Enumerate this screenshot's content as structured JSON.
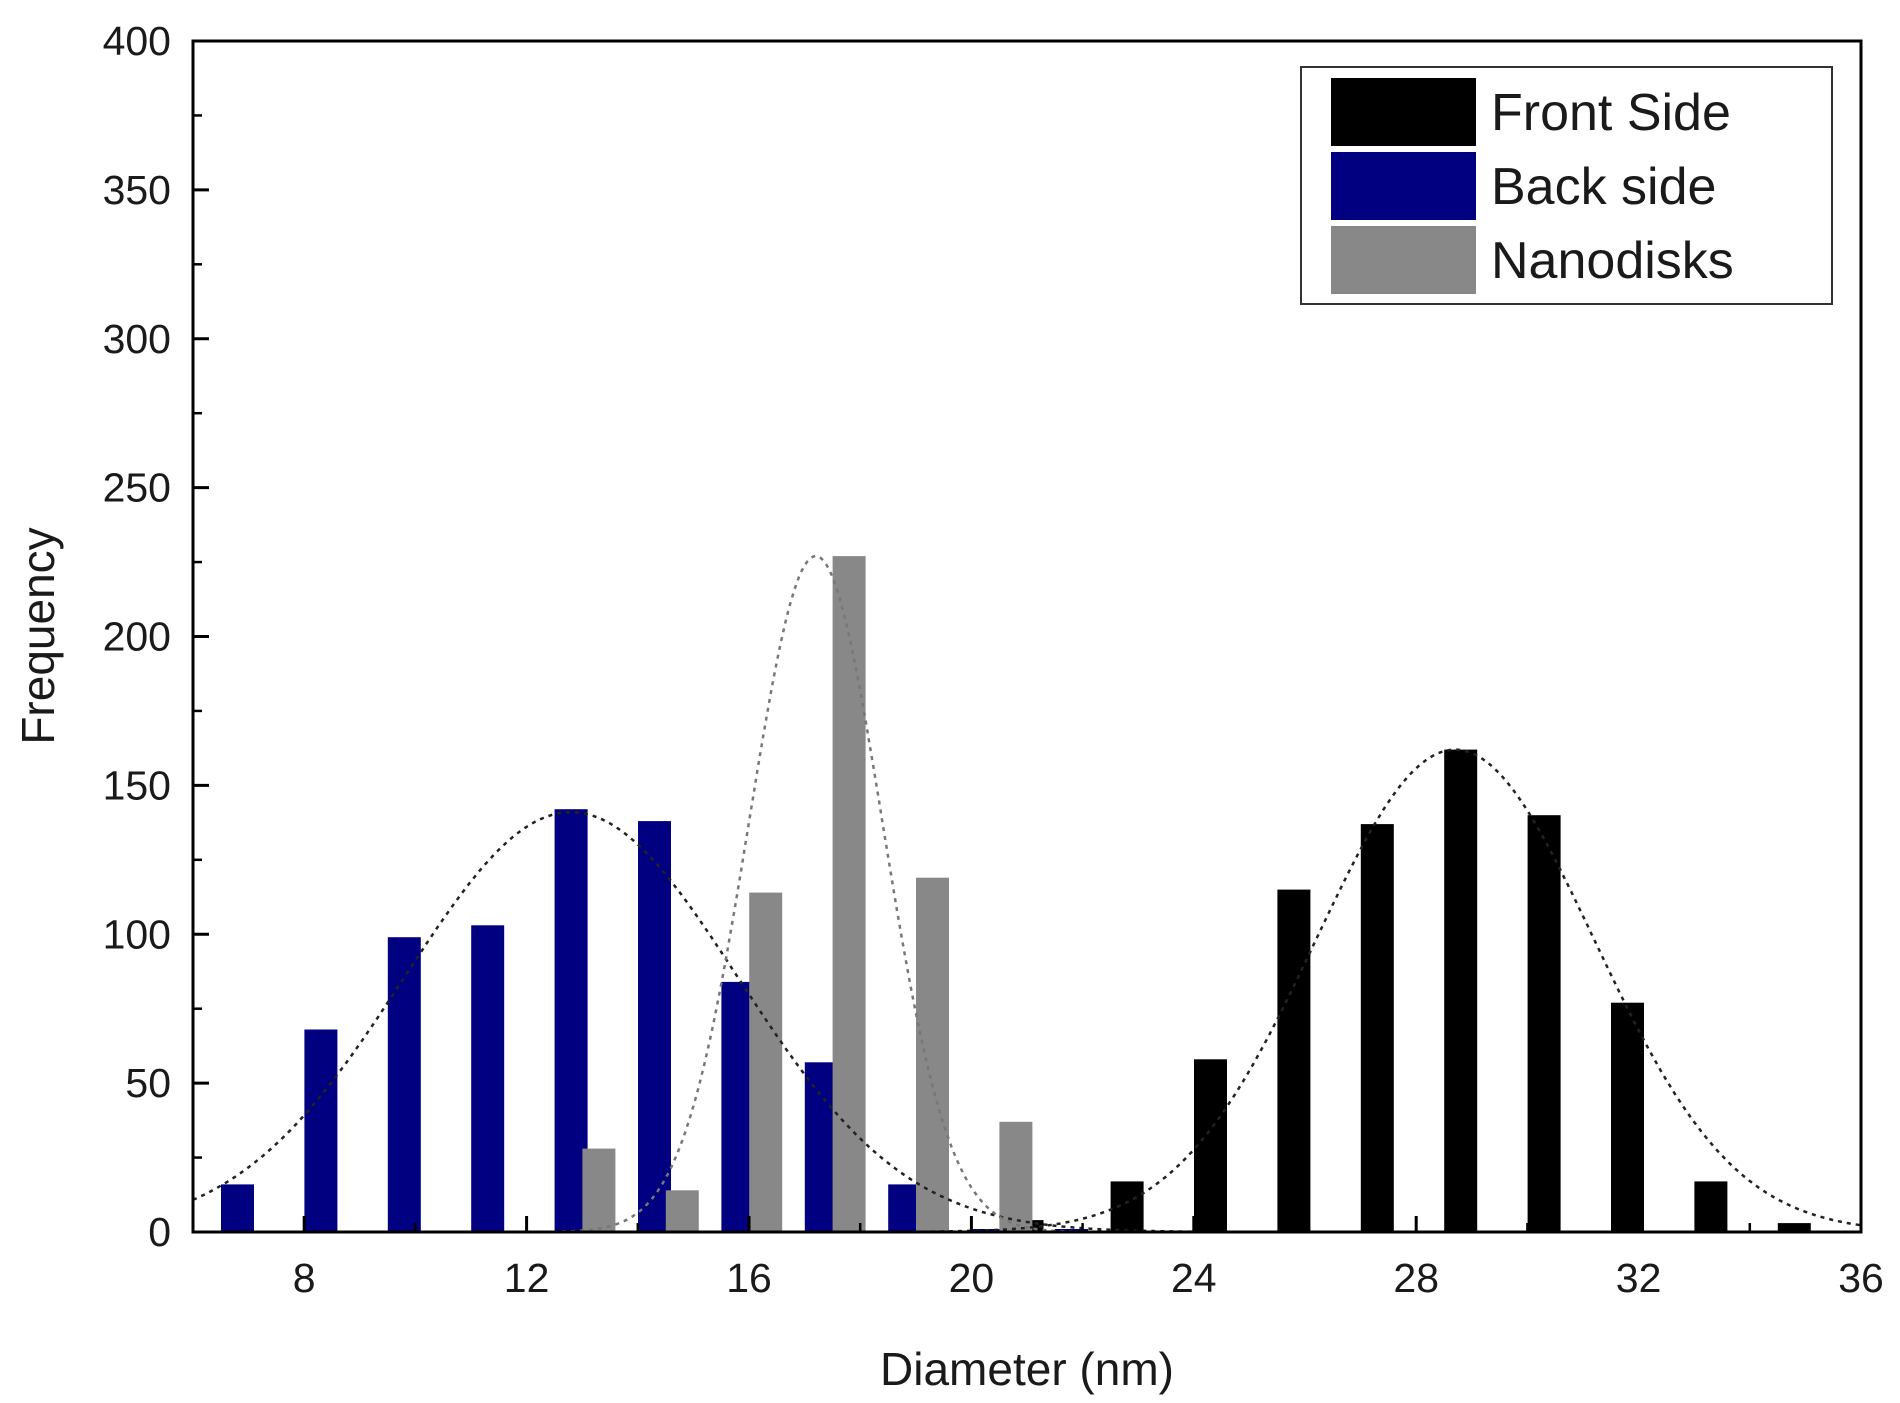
{
  "chart_data": {
    "type": "bar",
    "xlabel": "Diameter (nm)",
    "ylabel": "Frequency",
    "xlim": [
      6,
      36
    ],
    "ylim": [
      0,
      400
    ],
    "x_ticks": [
      8,
      12,
      16,
      20,
      24,
      28,
      32,
      36
    ],
    "y_ticks": [
      0,
      50,
      100,
      150,
      200,
      250,
      300,
      350,
      400
    ],
    "grid": false,
    "legend_position": "top-right",
    "series": [
      {
        "name": "Front Side",
        "color": "#000000",
        "x": [
          21.0,
          22.8,
          24.3,
          25.8,
          27.3,
          28.8,
          30.3,
          31.8,
          33.3,
          34.8
        ],
        "values": [
          4,
          17,
          58,
          115,
          137,
          162,
          140,
          77,
          17,
          3
        ],
        "fit": {
          "mean": 28.7,
          "sd": 2.5,
          "peak": 162,
          "color": "#222222"
        }
      },
      {
        "name": "Back side",
        "color": "#000080",
        "x": [
          6.8,
          8.3,
          9.8,
          11.3,
          12.8,
          14.3,
          15.8,
          17.3,
          18.8,
          20.3,
          21.8
        ],
        "values": [
          16,
          68,
          99,
          103,
          142,
          138,
          84,
          57,
          16,
          1,
          1
        ],
        "fit": {
          "mean": 12.8,
          "sd": 3.0,
          "peak": 141,
          "color": "#222222"
        }
      },
      {
        "name": "Nanodisks",
        "color": "#888888",
        "x": [
          13.3,
          14.8,
          16.3,
          17.8,
          19.3,
          20.8
        ],
        "values": [
          28,
          14,
          114,
          227,
          119,
          37
        ],
        "fit": {
          "mean": 17.2,
          "sd": 1.2,
          "peak": 227,
          "color": "#777777"
        }
      }
    ]
  }
}
